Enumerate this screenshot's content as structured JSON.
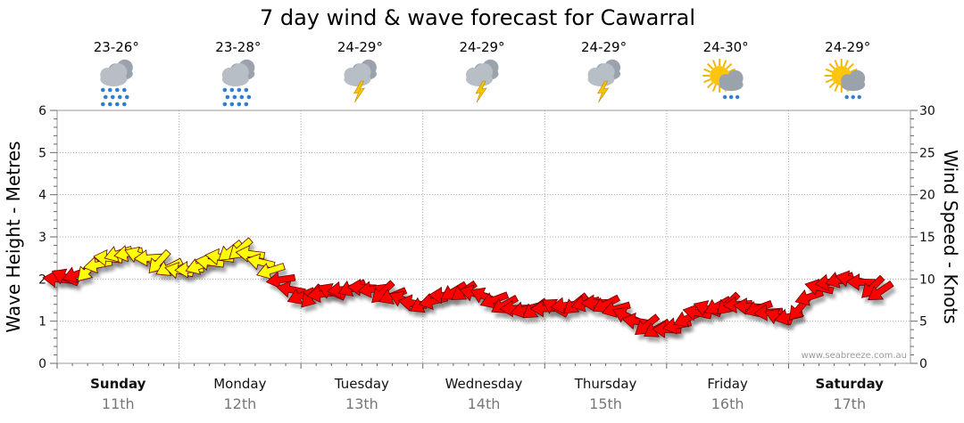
{
  "chart_data": {
    "type": "line",
    "title": "7 day wind & wave forecast for Cawarral",
    "ylabel_left": "Wave Height - Metres",
    "ylabel_right": "Wind Speed - Knots",
    "ylim_left": [
      0,
      6
    ],
    "ylim_right": [
      0,
      30
    ],
    "left_ticks": [
      "0",
      "1",
      "2",
      "3",
      "4",
      "5",
      "6"
    ],
    "right_ticks": [
      "0",
      "5",
      "10",
      "15",
      "20",
      "25",
      "30"
    ],
    "watermark": "www.seabreeze.com.au",
    "colors": {
      "strong_wind": "#ffff00",
      "light_wind": "#ff0000",
      "grid": "#aaaaaa"
    },
    "days": [
      {
        "name": "Sunday",
        "date": "11th",
        "bold": true,
        "temp": "23-26°",
        "icon": "rain-cloud-icon"
      },
      {
        "name": "Monday",
        "date": "12th",
        "bold": false,
        "temp": "23-28°",
        "icon": "rain-cloud-icon"
      },
      {
        "name": "Tuesday",
        "date": "13th",
        "bold": false,
        "temp": "24-29°",
        "icon": "storm-cloud-icon"
      },
      {
        "name": "Wednesday",
        "date": "14th",
        "bold": false,
        "temp": "24-29°",
        "icon": "storm-cloud-icon"
      },
      {
        "name": "Thursday",
        "date": "15th",
        "bold": false,
        "temp": "24-29°",
        "icon": "storm-cloud-icon"
      },
      {
        "name": "Friday",
        "date": "16th",
        "bold": false,
        "temp": "24-30°",
        "icon": "sun-shower-icon"
      },
      {
        "name": "Saturday",
        "date": "17th",
        "bold": true,
        "temp": "24-29°",
        "icon": "sun-shower-icon"
      }
    ],
    "series": [
      {
        "name": "Wind Speed (knots)",
        "x_hours": [
          0,
          6,
          12,
          18,
          24,
          30,
          36,
          42,
          48,
          54,
          60,
          66,
          72,
          78,
          84,
          90,
          96,
          102,
          108,
          114,
          120,
          126,
          132,
          138,
          144,
          150,
          156,
          162
        ],
        "values": [
          10,
          11,
          13,
          12.5,
          11,
          12,
          13.5,
          11,
          8,
          8.5,
          9,
          8,
          7,
          8.5,
          8,
          6.5,
          6.5,
          7,
          7,
          5,
          4,
          6,
          7,
          6.5,
          5.5,
          9,
          10,
          8.5
        ],
        "strong_wind_threshold": 11
      }
    ]
  }
}
